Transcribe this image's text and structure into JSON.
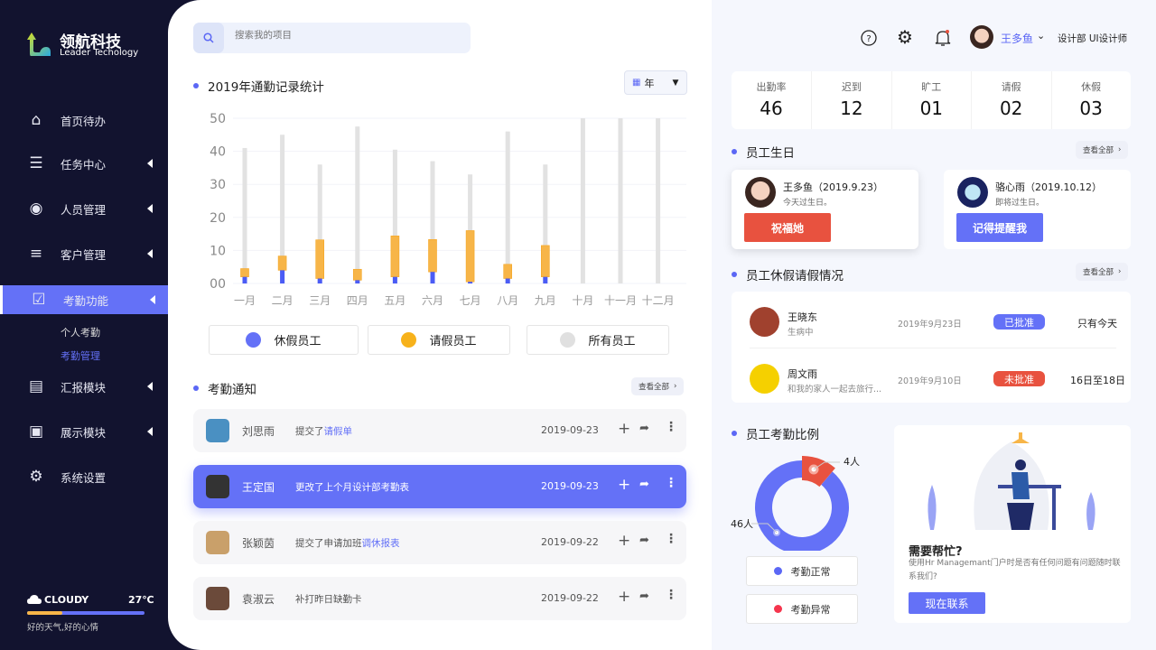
{
  "brand": {
    "name": "领航科技",
    "sub": "Leader Techology"
  },
  "sidebar": {
    "items": [
      {
        "label": "首页待办",
        "icon": "home-icon"
      },
      {
        "label": "任务中心",
        "icon": "task-icon"
      },
      {
        "label": "人员管理",
        "icon": "user-icon"
      },
      {
        "label": "客户管理",
        "icon": "customer-icon"
      },
      {
        "label": "考勤功能",
        "icon": "calendar-check-icon",
        "active": true
      },
      {
        "label": "汇报模块",
        "icon": "report-icon"
      },
      {
        "label": "展示模块",
        "icon": "display-icon"
      },
      {
        "label": "系统设置",
        "icon": "gear-icon"
      }
    ],
    "subitems": [
      {
        "label": "个人考勤"
      },
      {
        "label": "考勤管理",
        "active": true
      }
    ],
    "weather": {
      "condition": "CLOUDY",
      "temp": "27℃",
      "slogan": "好的天气,好的心情",
      "progress": 0.3
    }
  },
  "search": {
    "placeholder": "搜索我的项目"
  },
  "chart_section": {
    "title": "2019年通勤记录统计",
    "period": "年"
  },
  "chart_data": {
    "type": "bar",
    "categories": [
      "一月",
      "二月",
      "三月",
      "四月",
      "五月",
      "六月",
      "七月",
      "八月",
      "九月",
      "十月",
      "十一月",
      "十二月"
    ],
    "ylim": [
      0,
      50
    ],
    "yticks": [
      "00",
      "10",
      "20",
      "30",
      "40",
      "50"
    ],
    "grid": true,
    "series": [
      {
        "name": "休假员工",
        "color": "#4b5cf5",
        "values": [
          2,
          4,
          1.5,
          1,
          2,
          3.5,
          0.5,
          1.5,
          2,
          null,
          null,
          null
        ]
      },
      {
        "name": "请假员工",
        "color": "#f7b548",
        "values": [
          4.5,
          8.3,
          13.2,
          4.3,
          14.4,
          13.3,
          16,
          5.8,
          11.5,
          null,
          null,
          null
        ]
      },
      {
        "name": "所有员工",
        "color": "#e2e2e2",
        "values": [
          41,
          45,
          36,
          47.5,
          40.5,
          37,
          33,
          46,
          36,
          50,
          50,
          50
        ]
      }
    ]
  },
  "notice": {
    "title": "考勤通知",
    "view_all": "查看全部",
    "items": [
      {
        "name": "刘思雨",
        "desc": "提交了",
        "link": "请假单",
        "date": "2019-09-23"
      },
      {
        "name": "王定国",
        "desc": "更改了上个月设计部考勤表",
        "link": "",
        "date": "2019-09-23",
        "highlight": true
      },
      {
        "name": "张颖茵",
        "desc": "提交了申请加班",
        "link": "调休报表",
        "date": "2019-09-22"
      },
      {
        "name": "袁淑云",
        "desc": "补打昨日缺勤卡",
        "link": "",
        "date": "2019-09-22"
      }
    ]
  },
  "header": {
    "user": "王多鱼",
    "dept": "设计部 UI设计师",
    "icons": [
      "help-icon",
      "gear-icon",
      "bell-icon"
    ]
  },
  "stats": [
    {
      "label": "出勤率",
      "value": "46"
    },
    {
      "label": "迟到",
      "value": "12"
    },
    {
      "label": "旷工",
      "value": "01"
    },
    {
      "label": "请假",
      "value": "02"
    },
    {
      "label": "休假",
      "value": "03"
    }
  ],
  "birthday": {
    "title": "员工生日",
    "view_all": "查看全部",
    "items": [
      {
        "name": "王多鱼（2019.9.23）",
        "note": "今天过生日。",
        "button": "祝福她",
        "color": "#e8523f"
      },
      {
        "name": "骆心雨（2019.10.12）",
        "note": "即将过生日。",
        "button": "记得提醒我",
        "color": "#6471f7"
      }
    ]
  },
  "leave": {
    "title": "员工休假请假情况",
    "view_all": "查看全部",
    "items": [
      {
        "name": "王晓东",
        "note": "生病中",
        "date": "2019年9月23日",
        "status": "已批准",
        "status_color": "#6471f7",
        "range": "只有今天"
      },
      {
        "name": "周文雨",
        "note": "和我的家人一起去旅行...",
        "date": "2019年9月10日",
        "status": "未批准",
        "status_color": "#e8523f",
        "range": "16日至18日"
      }
    ]
  },
  "ratio": {
    "title": "员工考勤比例",
    "slices": [
      {
        "label": "考勤正常",
        "value": 46,
        "text": "46人",
        "color": "#6471f7"
      },
      {
        "label": "考勤异常",
        "value": 4,
        "text": "4人",
        "color": "#e8523f"
      }
    ],
    "legend_colors": [
      "#5b67f5",
      "#f5354d"
    ]
  },
  "help": {
    "title": "需要帮忙?",
    "text": "使用Hr  Managemant门户时是否有任何问题有问题随时联系我们?",
    "button": "现在联系"
  }
}
